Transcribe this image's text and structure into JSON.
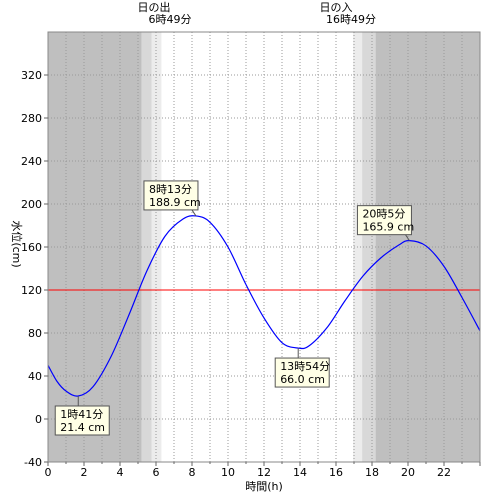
{
  "chart_data": {
    "type": "line",
    "xlabel": "時間(h)",
    "ylabel": "水位(cm)",
    "xlim": [
      0,
      24
    ],
    "ylim": [
      -40,
      360
    ],
    "x_ticks": [
      0,
      2,
      4,
      6,
      8,
      10,
      12,
      14,
      16,
      18,
      20,
      22
    ],
    "y_ticks": [
      -40,
      0,
      40,
      80,
      120,
      160,
      200,
      240,
      280,
      320
    ],
    "reference_line": {
      "y": 120,
      "color": "#ff0000"
    },
    "series": [
      {
        "color": "#0000ff",
        "x": [
          0,
          0.5,
          1,
          1.68,
          2.5,
          3.5,
          4.5,
          5.5,
          6.5,
          7.5,
          8.22,
          9,
          10,
          11,
          12,
          13,
          13.9,
          14.5,
          15.5,
          16.5,
          17.5,
          18.5,
          19.5,
          20.08,
          21,
          22,
          23,
          24
        ],
        "y": [
          50,
          35,
          26,
          21.4,
          30,
          58,
          97,
          138,
          170,
          186,
          188.9,
          183,
          160,
          125,
          94,
          71,
          66,
          68,
          85,
          110,
          133,
          150,
          162,
          165.9,
          161,
          142,
          113,
          82
        ]
      }
    ],
    "annotations": [
      {
        "label": "1時41分",
        "value": "21.4 cm",
        "x": 1.68,
        "y": 21.4,
        "box": "below"
      },
      {
        "label": "8時13分",
        "value": "188.9 cm",
        "x": 8.22,
        "y": 188.9,
        "box": "above"
      },
      {
        "label": "13時54分",
        "value": "66.0 cm",
        "x": 13.9,
        "y": 66.0,
        "box": "below"
      },
      {
        "label": "20時5分",
        "value": "165.9 cm",
        "x": 20.08,
        "y": 165.9,
        "box": "above"
      }
    ],
    "sun": {
      "rise_label": "日の出",
      "rise_time": "6時49分",
      "set_label": "日の入",
      "set_time": "16時49分",
      "night_bands": [
        [
          0,
          5.2
        ],
        [
          18.2,
          24
        ]
      ],
      "twilight_bands": [
        [
          5.2,
          5.75
        ],
        [
          5.75,
          6.3
        ],
        [
          16.95,
          17.45
        ],
        [
          17.45,
          18.2
        ]
      ]
    },
    "colors": {
      "night": "#bfbfbf",
      "twilight_dark": "#d8d8d8",
      "twilight_light": "#ececec",
      "day": "#ffffff"
    }
  }
}
